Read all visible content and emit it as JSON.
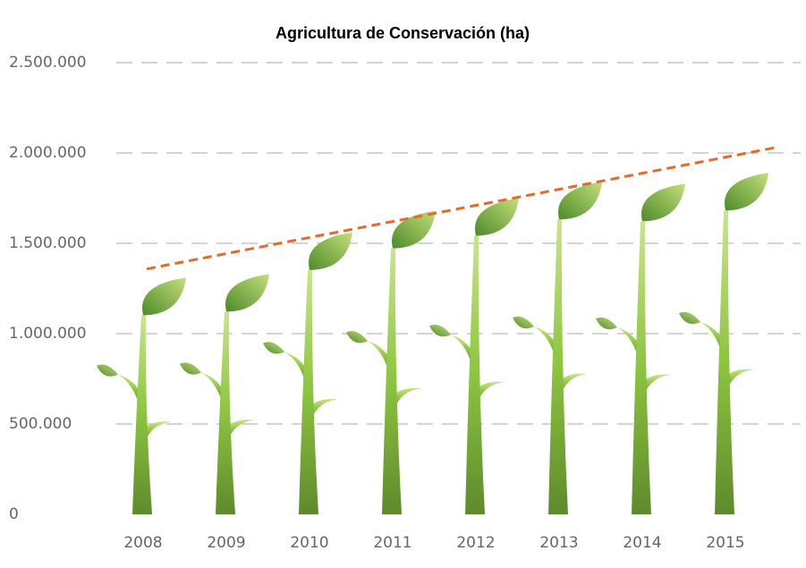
{
  "chart_data": {
    "type": "bar",
    "title": "Agricultura de Conservación (ha)",
    "categories": [
      "2008",
      "2009",
      "2010",
      "2011",
      "2012",
      "2013",
      "2014",
      "2015"
    ],
    "values": [
      1310000,
      1330000,
      1560000,
      1680000,
      1750000,
      1840000,
      1830000,
      1890000
    ],
    "color": "#7fb53a",
    "ylim": [
      0,
      2500000
    ],
    "yticks": [
      0,
      {
        "value": 500000,
        "label": "500.000"
      },
      {
        "value": 1000000,
        "label": "1.000.000"
      },
      {
        "value": 1500000,
        "label": "1.500.000"
      },
      {
        "value": 2000000,
        "label": "2.000.000"
      },
      {
        "value": 2500000,
        "label": "2.500.000"
      }
    ],
    "grid": true,
    "trendline": true,
    "trendline_color": "#e8692a"
  }
}
